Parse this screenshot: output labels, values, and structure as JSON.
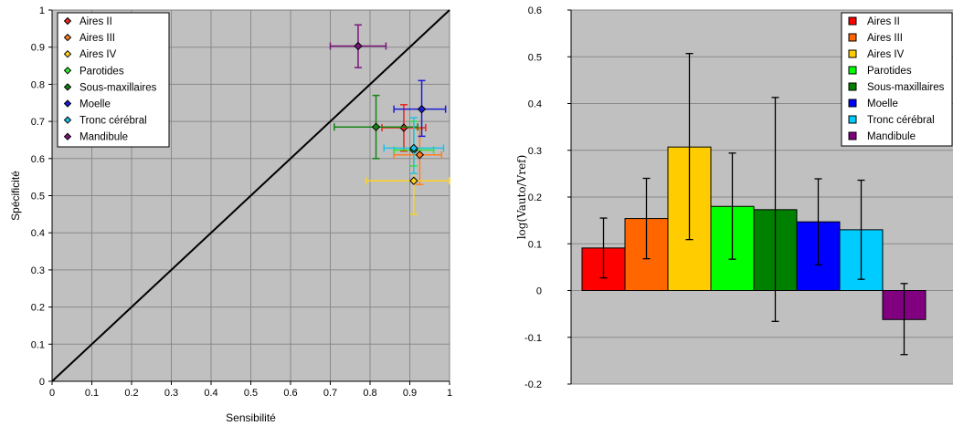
{
  "chart_data": [
    {
      "type": "scatter",
      "xlabel": "Sensibilité",
      "ylabel": "Spécificité",
      "xlim": [
        0,
        1
      ],
      "ylim": [
        0,
        1
      ],
      "x_ticks": [
        "0",
        "0.1",
        "0.2",
        "0.3",
        "0.4",
        "0.5",
        "0.6",
        "0.7",
        "0.8",
        "0.9",
        "1"
      ],
      "y_ticks": [
        "0",
        "0.1",
        "0.2",
        "0.3",
        "0.4",
        "0.5",
        "0.6",
        "0.7",
        "0.8",
        "0.9",
        "1"
      ],
      "grid": true,
      "legend_position": "top-left",
      "diagonal_line": true,
      "series": [
        {
          "name": "Aires II",
          "color": "#e8251f",
          "x": 0.885,
          "y": 0.683,
          "x_err": [
            0.83,
            0.94
          ],
          "y_err": [
            0.62,
            0.745
          ]
        },
        {
          "name": "Aires III",
          "color": "#ff7e1f",
          "x": 0.925,
          "y": 0.61,
          "x_err": [
            0.86,
            0.98
          ],
          "y_err": [
            0.53,
            0.68
          ]
        },
        {
          "name": "Aires IV",
          "color": "#ffd21f",
          "x": 0.91,
          "y": 0.54,
          "x_err": [
            0.79,
            1.0
          ],
          "y_err": [
            0.45,
            0.63
          ]
        },
        {
          "name": "Parotides",
          "color": "#2ee82e",
          "x": 0.91,
          "y": 0.623,
          "x_err": [
            0.86,
            0.96
          ],
          "y_err": [
            0.58,
            0.7
          ]
        },
        {
          "name": "Sous-maxillaires",
          "color": "#138413",
          "x": 0.815,
          "y": 0.685,
          "x_err": [
            0.71,
            0.92
          ],
          "y_err": [
            0.6,
            0.77
          ]
        },
        {
          "name": "Moelle",
          "color": "#1c1cd6",
          "x": 0.93,
          "y": 0.733,
          "x_err": [
            0.86,
            0.99
          ],
          "y_err": [
            0.66,
            0.81
          ]
        },
        {
          "name": "Tronc cérébral",
          "color": "#1ec2ea",
          "x": 0.91,
          "y": 0.628,
          "x_err": [
            0.835,
            0.985
          ],
          "y_err": [
            0.56,
            0.71
          ]
        },
        {
          "name": "Mandibule",
          "color": "#7a1478",
          "x": 0.77,
          "y": 0.903,
          "x_err": [
            0.7,
            0.84
          ],
          "y_err": [
            0.845,
            0.96
          ]
        }
      ]
    },
    {
      "type": "bar",
      "xlabel": "",
      "ylabel": "log(Vauto/Vref)",
      "ylim": [
        -0.2,
        0.6
      ],
      "y_ticks": [
        "-0.2",
        "-0.1",
        "0",
        "0.1",
        "0.2",
        "0.3",
        "0.4",
        "0.5",
        "0.6"
      ],
      "grid": true,
      "legend_position": "top-right",
      "categories": [
        "Aires II",
        "Aires III",
        "Aires IV",
        "Parotides",
        "Sous-maxillaires",
        "Moelle",
        "Tronc cérébral",
        "Mandibule"
      ],
      "colors": [
        "#ff0000",
        "#ff6600",
        "#ffcc00",
        "#00ff00",
        "#008000",
        "#0000ff",
        "#00ccff",
        "#800080"
      ],
      "values": [
        0.091,
        0.154,
        0.307,
        0.18,
        0.173,
        0.147,
        0.13,
        -0.062
      ],
      "err_high": [
        0.155,
        0.24,
        0.507,
        0.294,
        0.413,
        0.239,
        0.236,
        0.015
      ],
      "err_low": [
        0.027,
        0.068,
        0.109,
        0.067,
        -0.066,
        0.055,
        0.024,
        -0.137
      ]
    }
  ]
}
